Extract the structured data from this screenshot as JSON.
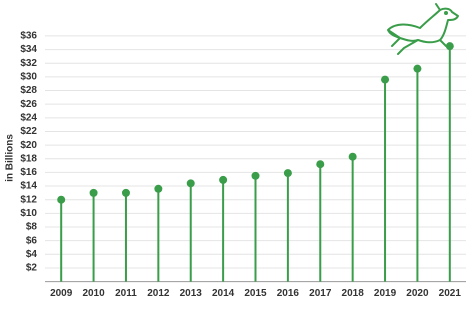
{
  "chart_data": {
    "type": "lollipop",
    "y_label": "in Billions",
    "categories": [
      "2009",
      "2010",
      "2011",
      "2012",
      "2013",
      "2014",
      "2015",
      "2016",
      "2017",
      "2018",
      "2019",
      "2020",
      "2021"
    ],
    "values": [
      12.0,
      13.0,
      13.0,
      13.6,
      14.4,
      14.9,
      15.5,
      15.9,
      17.2,
      18.3,
      29.6,
      31.2,
      34.5
    ],
    "color": "#3a9d4a",
    "ylim": [
      0,
      37
    ],
    "yticks": [
      {
        "value": 2,
        "label": "$2"
      },
      {
        "value": 4,
        "label": "$4"
      },
      {
        "value": 6,
        "label": "$6"
      },
      {
        "value": 8,
        "label": "$8"
      },
      {
        "value": 10,
        "label": "$10"
      },
      {
        "value": 12,
        "label": "$12"
      },
      {
        "value": 14,
        "label": "$14"
      },
      {
        "value": 16,
        "label": "$16"
      },
      {
        "value": 18,
        "label": "$18"
      },
      {
        "value": 20,
        "label": "$20"
      },
      {
        "value": 22,
        "label": "$22"
      },
      {
        "value": 24,
        "label": "$24"
      },
      {
        "value": 26,
        "label": "$26"
      },
      {
        "value": 28,
        "label": "$28"
      },
      {
        "value": 30,
        "label": "$30"
      },
      {
        "value": 32,
        "label": "$32"
      },
      {
        "value": 34,
        "label": "$34"
      },
      {
        "value": 36,
        "label": "$36"
      }
    ],
    "grid": true
  }
}
